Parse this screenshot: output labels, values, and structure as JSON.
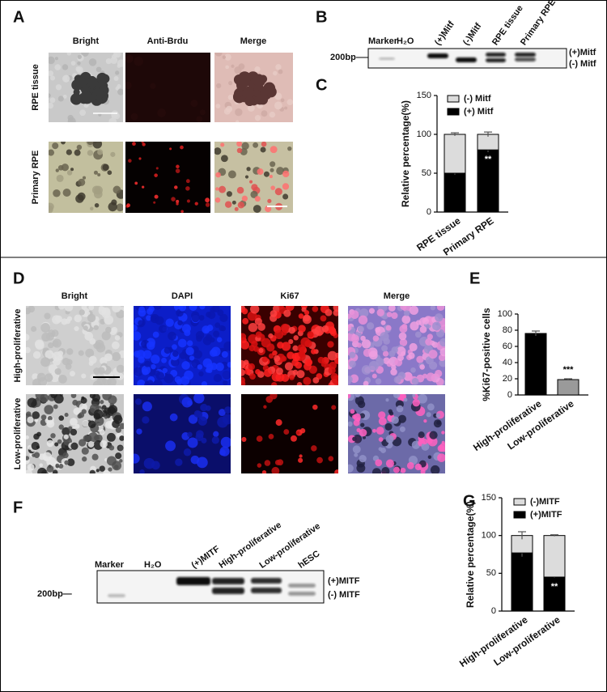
{
  "figure": {
    "panel_labels": [
      "A",
      "B",
      "C",
      "D",
      "E",
      "F",
      "G"
    ],
    "panel_a": {
      "columns": [
        "Bright",
        "Anti-Brdu",
        "Merge"
      ],
      "rows": [
        "RPE tissue",
        "Primary RPE"
      ]
    },
    "panel_b": {
      "lanes": [
        "Marker",
        "H₂O",
        "(+)Mitf",
        "(-)Mitf",
        "RPE tissue",
        "Primary RPE"
      ],
      "size_marker": "200bp",
      "bands": [
        "(+)Mitf",
        "(-) Mitf"
      ]
    },
    "panel_d": {
      "columns": [
        "Bright",
        "DAPI",
        "Ki67",
        "Merge"
      ],
      "rows": [
        "High-proliferative",
        "Low-proliferative"
      ]
    },
    "panel_f": {
      "lanes": [
        "Marker",
        "H₂O",
        "(+)MITF",
        "High-proliferative",
        "Low-proliferative",
        "hESC"
      ],
      "size_marker": "200bp—",
      "bands": [
        "(+)MITF",
        "(-) MITF"
      ]
    }
  },
  "chart_data": [
    {
      "type": "stacked_bar",
      "y_label": "Relative percentage(%)",
      "categories": [
        "RPE tissue",
        "Primary RPE"
      ],
      "series": [
        {
          "name": "(-) Mitf",
          "color": "#dcdcdc",
          "values": [
            50,
            20
          ],
          "errors": [
            2,
            3
          ]
        },
        {
          "name": "(+) Mitf",
          "color": "#000000",
          "values": [
            50,
            80
          ],
          "errors": [
            2,
            3
          ]
        }
      ],
      "ylim": [
        0,
        150
      ],
      "yticks": [
        0,
        50,
        100,
        150
      ],
      "legend": "upper left",
      "annotation": "**"
    },
    {
      "type": "bar",
      "y_label": "%Ki67-positive cells",
      "categories": [
        "High-proliferative",
        "Low-proliferative"
      ],
      "values": [
        76,
        19
      ],
      "errors": [
        3,
        1
      ],
      "colors": [
        "#000000",
        "#9a9a9a"
      ],
      "ylim": [
        0,
        100
      ],
      "yticks": [
        0,
        20,
        40,
        60,
        80,
        100
      ],
      "annotation": "***"
    },
    {
      "type": "stacked_bar",
      "y_label": "Relative percentage(%)",
      "categories": [
        "High-proliferative",
        "Low-proliferative"
      ],
      "series": [
        {
          "name": "(-)MITF",
          "color": "#dcdcdc",
          "values": [
            23,
            55
          ],
          "errors": [
            5,
            1
          ]
        },
        {
          "name": "(+)MITF",
          "color": "#000000",
          "values": [
            77,
            45
          ],
          "errors": [
            5,
            1
          ]
        }
      ],
      "ylim": [
        0,
        150
      ],
      "yticks": [
        0,
        50,
        100,
        150
      ],
      "legend": "upper left",
      "annotation": "**"
    }
  ]
}
